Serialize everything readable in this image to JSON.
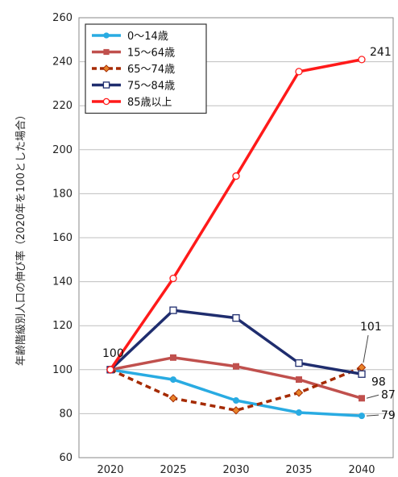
{
  "chart_data": {
    "type": "line",
    "title": "",
    "xlabel": "",
    "ylabel": "年齢階級別人口の伸び率（2020年を100とした場合）",
    "categories": [
      "2020",
      "2025",
      "2030",
      "2035",
      "2040"
    ],
    "ylim": [
      60,
      260
    ],
    "yticks": [
      60,
      80,
      100,
      120,
      140,
      160,
      180,
      200,
      220,
      240,
      260
    ],
    "grid": "horizontal",
    "legend_position": "top-left",
    "series": [
      {
        "name": "0～14歳",
        "values": [
          100,
          95.5,
          86,
          80.5,
          79
        ],
        "color": "#29abe2",
        "style": "solid",
        "marker": "circle-filled"
      },
      {
        "name": "15～64歳",
        "values": [
          100,
          105.5,
          101.5,
          95.5,
          87
        ],
        "color": "#c0504d",
        "style": "solid",
        "marker": "square-filled"
      },
      {
        "name": "65～74歳",
        "values": [
          100,
          87,
          81.5,
          89.5,
          101
        ],
        "color": "#a52a00",
        "style": "dashed",
        "marker": "diamond-filled"
      },
      {
        "name": "75～84歳",
        "values": [
          100,
          127,
          123.5,
          103,
          98
        ],
        "color": "#1f2d6e",
        "style": "solid",
        "marker": "square-open"
      },
      {
        "name": "85歳以上",
        "values": [
          100,
          141.5,
          188,
          235.5,
          241
        ],
        "color": "#ff1a1a",
        "style": "solid",
        "marker": "circle-open"
      }
    ],
    "annotations": [
      {
        "text": "100",
        "series_index": 0,
        "point_index": 0
      },
      {
        "text": "241",
        "series_index": 4,
        "point_index": 4
      },
      {
        "text": "101",
        "series_index": 2,
        "point_index": 4
      },
      {
        "text": "98",
        "series_index": 3,
        "point_index": 4
      },
      {
        "text": "87",
        "series_index": 1,
        "point_index": 4
      },
      {
        "text": "79",
        "series_index": 0,
        "point_index": 4
      }
    ]
  }
}
